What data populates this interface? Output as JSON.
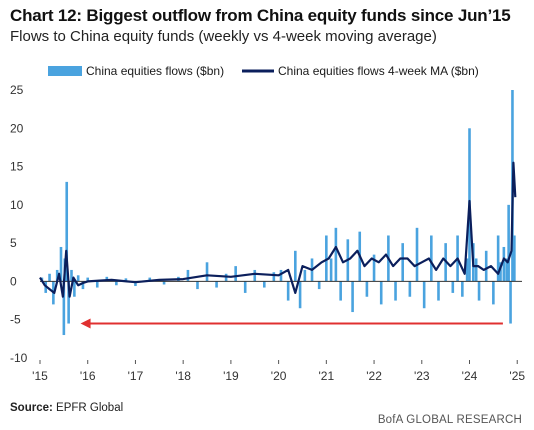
{
  "header": {
    "title": "Chart 12: Biggest outflow from China equity funds since Jun’15",
    "subtitle": "Flows to China equity funds (weekly vs 4-week moving average)"
  },
  "footer": {
    "source_label": "Source:",
    "source_text": "EPFR Global",
    "brand": "BofA GLOBAL RESEARCH"
  },
  "colors": {
    "bars": "#4aa3df",
    "ma_line": "#0b1f5c",
    "arrow": "#e03030",
    "zero_line": "#333333"
  },
  "chart_data": {
    "type": "bar",
    "title": "",
    "xlabel": "",
    "ylabel": "",
    "ylim": [
      -10,
      25
    ],
    "yticks": [
      -10,
      -5,
      0,
      5,
      10,
      15,
      20,
      25
    ],
    "xlim": [
      2015.0,
      2025.1
    ],
    "xtick_labels": [
      "'15",
      "'16",
      "'17",
      "'18",
      "'19",
      "'20",
      "'21",
      "'22",
      "'23",
      "'24",
      "'25"
    ],
    "xtick_positions": [
      2015,
      2016,
      2017,
      2018,
      2019,
      2020,
      2021,
      2022,
      2023,
      2024,
      2025
    ],
    "legend_position": "top",
    "series": [
      {
        "name": "China equities flows ($bn)",
        "kind": "bar",
        "x": [
          2015.04,
          2015.12,
          2015.2,
          2015.28,
          2015.36,
          2015.44,
          2015.5,
          2015.52,
          2015.56,
          2015.6,
          2015.66,
          2015.72,
          2015.8,
          2015.9,
          2016.0,
          2016.2,
          2016.4,
          2016.6,
          2016.8,
          2017.0,
          2017.3,
          2017.6,
          2017.9,
          2018.1,
          2018.3,
          2018.5,
          2018.7,
          2018.9,
          2019.1,
          2019.3,
          2019.5,
          2019.7,
          2019.9,
          2020.05,
          2020.2,
          2020.35,
          2020.45,
          2020.55,
          2020.7,
          2020.85,
          2021.0,
          2021.1,
          2021.2,
          2021.3,
          2021.45,
          2021.55,
          2021.7,
          2021.85,
          2022.0,
          2022.15,
          2022.3,
          2022.45,
          2022.6,
          2022.75,
          2022.9,
          2023.05,
          2023.2,
          2023.35,
          2023.5,
          2023.65,
          2023.75,
          2023.85,
          2023.95,
          2024.0,
          2024.08,
          2024.14,
          2024.2,
          2024.35,
          2024.5,
          2024.6,
          2024.65,
          2024.72,
          2024.78,
          2024.82,
          2024.86,
          2024.9,
          2024.94
        ],
        "values": [
          0.5,
          -1.5,
          1.0,
          -3.0,
          1.5,
          4.5,
          -7.0,
          3.0,
          13.0,
          -5.5,
          1.5,
          -2.0,
          0.8,
          -1.0,
          0.5,
          -0.8,
          0.6,
          -0.5,
          0.4,
          -0.6,
          0.5,
          -0.4,
          0.6,
          1.5,
          -1.0,
          2.5,
          -0.8,
          1.0,
          2.0,
          -1.5,
          1.5,
          -0.8,
          1.2,
          1.5,
          -2.5,
          4.0,
          -3.5,
          1.5,
          3.0,
          -1.0,
          6.0,
          3.0,
          7.0,
          -2.5,
          5.5,
          -4.0,
          6.5,
          -2.0,
          3.5,
          -3.0,
          6.0,
          -2.5,
          5.0,
          -2.0,
          7.0,
          -3.5,
          6.0,
          -2.5,
          5.0,
          -1.5,
          6.0,
          -2.0,
          3.0,
          20.0,
          5.0,
          3.0,
          -2.5,
          4.0,
          -3.0,
          6.0,
          2.5,
          4.5,
          3.0,
          10.0,
          -5.5,
          25.0,
          6.0
        ]
      },
      {
        "name": "China equities flows 4-week MA ($bn)",
        "kind": "line",
        "x": [
          2015.0,
          2015.1,
          2015.2,
          2015.3,
          2015.4,
          2015.48,
          2015.55,
          2015.62,
          2015.7,
          2015.8,
          2015.9,
          2016.0,
          2016.5,
          2017.0,
          2017.5,
          2018.0,
          2018.5,
          2019.0,
          2019.5,
          2020.0,
          2020.2,
          2020.35,
          2020.5,
          2020.7,
          2020.9,
          2021.05,
          2021.2,
          2021.35,
          2021.5,
          2021.65,
          2021.8,
          2021.95,
          2022.1,
          2022.25,
          2022.4,
          2022.55,
          2022.7,
          2022.85,
          2023.0,
          2023.15,
          2023.3,
          2023.45,
          2023.6,
          2023.75,
          2023.9,
          2024.0,
          2024.08,
          2024.18,
          2024.3,
          2024.45,
          2024.6,
          2024.72,
          2024.8,
          2024.88,
          2024.92,
          2024.96
        ],
        "values": [
          0.5,
          -0.5,
          -1.0,
          -1.5,
          1.0,
          -2.0,
          4.0,
          -2.0,
          0.5,
          -0.5,
          -0.2,
          0.0,
          0.2,
          -0.1,
          0.2,
          0.3,
          0.8,
          0.6,
          1.0,
          0.8,
          1.5,
          -1.5,
          2.0,
          1.5,
          2.5,
          3.0,
          4.5,
          2.5,
          3.0,
          4.0,
          2.0,
          3.0,
          2.5,
          3.5,
          2.0,
          3.0,
          3.0,
          2.0,
          2.5,
          3.0,
          1.5,
          3.0,
          2.0,
          3.0,
          1.0,
          10.5,
          2.0,
          2.0,
          1.5,
          2.0,
          1.0,
          3.0,
          2.5,
          4.0,
          15.5,
          11.0
        ]
      }
    ],
    "annotations": [
      {
        "type": "arrow",
        "from": [
          2024.7,
          -5.5
        ],
        "to": [
          2015.85,
          -5.5
        ],
        "color": "#e03030"
      }
    ]
  }
}
